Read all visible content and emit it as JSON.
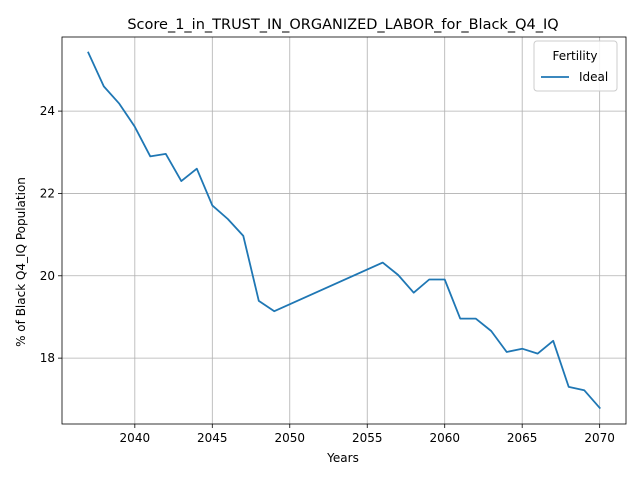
{
  "chart_data": {
    "type": "line",
    "title": "Score_1_in_TRUST_IN_ORGANIZED_LABOR_for_Black_Q4_IQ",
    "xlabel": "Years",
    "ylabel": "% of Black Q4_IQ Population",
    "xlim": [
      2035.3,
      2071.7
    ],
    "ylim": [
      16.4,
      25.8
    ],
    "xticks": [
      2040,
      2045,
      2050,
      2055,
      2060,
      2065,
      2070
    ],
    "yticks": [
      18,
      20,
      22,
      24
    ],
    "grid": true,
    "legend": {
      "title": "Fertility",
      "placement": "top-right"
    },
    "series": [
      {
        "name": "Ideal",
        "color": "#1f77b4",
        "x": [
          2037,
          2038,
          2039,
          2040,
          2041,
          2042,
          2043,
          2044,
          2045,
          2046,
          2047,
          2048,
          2049,
          2056,
          2057,
          2058,
          2059,
          2060,
          2061,
          2062,
          2063,
          2064,
          2065,
          2066,
          2067,
          2068,
          2069,
          2070
        ],
        "y": [
          25.42,
          24.6,
          24.18,
          23.62,
          22.9,
          22.96,
          22.3,
          22.6,
          21.71,
          21.38,
          20.97,
          19.39,
          19.14,
          20.32,
          20.02,
          19.59,
          19.91,
          19.91,
          18.96,
          18.96,
          18.66,
          18.15,
          18.23,
          18.11,
          18.42,
          17.3,
          17.22,
          16.79
        ]
      }
    ]
  }
}
